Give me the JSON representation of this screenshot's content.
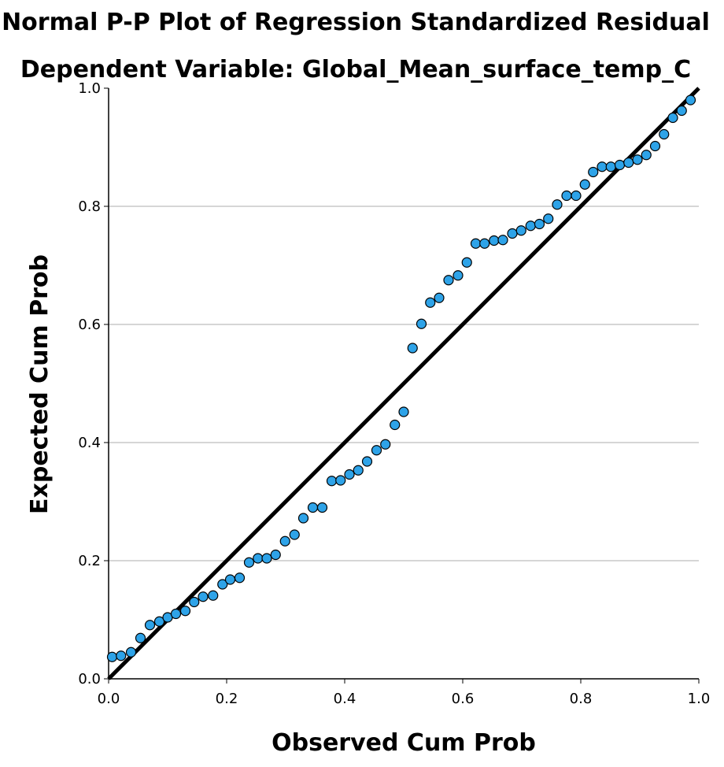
{
  "chart_data": {
    "type": "scatter",
    "title": "Normal P-P Plot of Regression Standardized Residual",
    "subtitle": "Dependent Variable: Global_Mean_surface_temp_C",
    "xlabel": "Observed Cum Prob",
    "ylabel": "Expected Cum Prob",
    "xlim": [
      0.0,
      1.0
    ],
    "ylim": [
      0.0,
      1.0
    ],
    "xticks": [
      "0.0",
      "0.2",
      "0.4",
      "0.6",
      "0.8",
      "1.0"
    ],
    "yticks": [
      "0.0",
      "0.2",
      "0.4",
      "0.6",
      "0.8",
      "1.0"
    ],
    "grid": "horizontal",
    "reference_line": {
      "x": [
        0.0,
        1.0
      ],
      "y": [
        0.0,
        1.0
      ],
      "color": "#000000"
    },
    "marker_color": "#2ea3e8",
    "marker_edge_color": "#000000",
    "points": {
      "x": [
        0.006,
        0.021,
        0.038,
        0.054,
        0.07,
        0.086,
        0.1,
        0.114,
        0.13,
        0.145,
        0.16,
        0.177,
        0.193,
        0.206,
        0.222,
        0.238,
        0.253,
        0.268,
        0.283,
        0.299,
        0.315,
        0.33,
        0.346,
        0.362,
        0.378,
        0.393,
        0.408,
        0.423,
        0.438,
        0.454,
        0.469,
        0.485,
        0.5,
        0.515,
        0.53,
        0.545,
        0.56,
        0.576,
        0.592,
        0.607,
        0.622,
        0.637,
        0.653,
        0.668,
        0.684,
        0.699,
        0.715,
        0.73,
        0.745,
        0.76,
        0.776,
        0.792,
        0.807,
        0.821,
        0.836,
        0.851,
        0.866,
        0.881,
        0.896,
        0.911,
        0.926,
        0.941,
        0.956,
        0.971,
        0.986
      ],
      "y": [
        0.037,
        0.039,
        0.045,
        0.069,
        0.091,
        0.097,
        0.104,
        0.11,
        0.115,
        0.13,
        0.139,
        0.141,
        0.16,
        0.168,
        0.171,
        0.197,
        0.204,
        0.204,
        0.21,
        0.233,
        0.244,
        0.272,
        0.29,
        0.29,
        0.335,
        0.336,
        0.346,
        0.353,
        0.368,
        0.387,
        0.397,
        0.43,
        0.452,
        0.56,
        0.601,
        0.637,
        0.645,
        0.675,
        0.683,
        0.705,
        0.737,
        0.737,
        0.742,
        0.743,
        0.754,
        0.759,
        0.767,
        0.77,
        0.779,
        0.803,
        0.818,
        0.818,
        0.837,
        0.858,
        0.867,
        0.867,
        0.87,
        0.874,
        0.879,
        0.887,
        0.902,
        0.922,
        0.95,
        0.962,
        0.98
      ]
    }
  }
}
